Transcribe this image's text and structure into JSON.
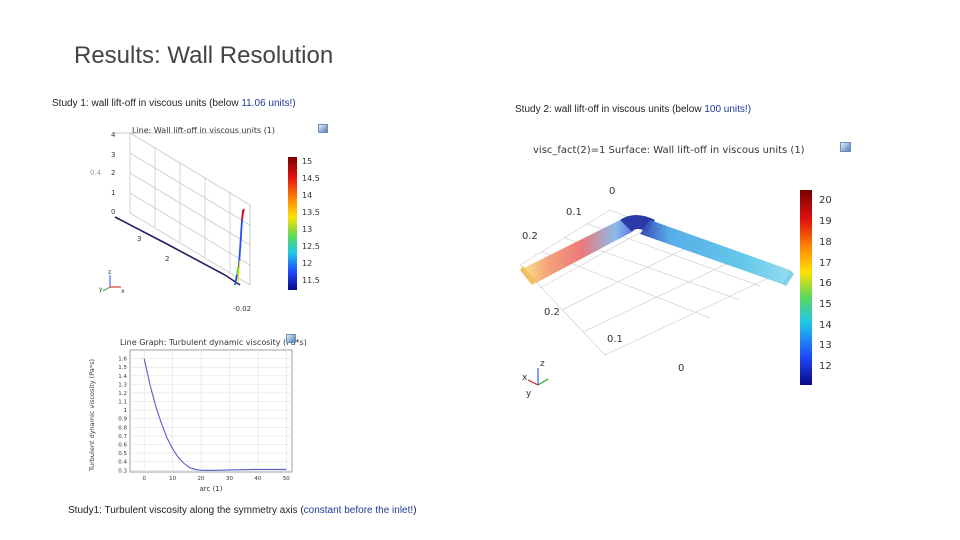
{
  "slide": {
    "title": "Results: Wall Resolution"
  },
  "study1_3d": {
    "caption_pre": "Study 1: wall lift-off in viscous units (below ",
    "caption_hl": "11.06 units!)",
    "plot_header": "Line: Wall lift-off in viscous units (1)",
    "axis_ticks": [
      "4",
      "3",
      "2",
      "1",
      "0"
    ],
    "side_label": "0.4",
    "tick_a": "3",
    "tick_b": "2",
    "tick_corner": "-0.02",
    "triad": {
      "z": "z",
      "y": "y",
      "x": "x"
    },
    "colorbar": {
      "ticks": [
        "15",
        "14.5",
        "14",
        "13.5",
        "13",
        "12.5",
        "12",
        "11.5"
      ],
      "stops": [
        "#7a0000",
        "#e01010",
        "#ff8c00",
        "#ffe000",
        "#59d95f",
        "#1fc7e8",
        "#1f4bff",
        "#0a0a88"
      ]
    }
  },
  "study1_line": {
    "header": "Line Graph: Turbulent dynamic viscosity (Pa*s)",
    "ylabel": "Turbulent dynamic viscosity (Pa*s)",
    "xlabel": "arc (1)",
    "caption_pre": "Study1: Turbulent viscosity along the symmetry axis (",
    "caption_hl": "constant before the inlet!",
    "caption_post": ")"
  },
  "study2_3d": {
    "caption_pre": "Study 2: wall lift-off in viscous units (below ",
    "caption_hl": "100 units!)",
    "caption_post": "",
    "plot_header": "visc_fact(2)=1   Surface: Wall lift-off in viscous units (1)",
    "axis_labels": {
      "top0": "0",
      "a01": "0.1",
      "a02": "0.2",
      "b02": "0.2",
      "b01": "0.1",
      "b0": "0"
    },
    "triad": {
      "z": "z",
      "y": "y",
      "x": "x"
    },
    "colorbar": {
      "ticks": [
        "20",
        "19",
        "18",
        "17",
        "16",
        "15",
        "14",
        "13",
        "12"
      ],
      "stops": [
        "#7a0000",
        "#e01010",
        "#ff8c00",
        "#ffe000",
        "#59d95f",
        "#1fc7e8",
        "#1f4bff",
        "#0a0a88"
      ]
    }
  },
  "chart_data": {
    "type": "line",
    "title": "Line Graph: Turbulent dynamic viscosity (Pa*s)",
    "xlabel": "arc (1)",
    "ylabel": "Turbulent dynamic viscosity (Pa*s)",
    "xlim": [
      -5,
      52
    ],
    "ylim": [
      0.28,
      1.7
    ],
    "x_ticks": [
      0,
      10,
      20,
      30,
      40,
      50
    ],
    "y_ticks": [
      1.6,
      1.5,
      1.4,
      1.3,
      1.2,
      1.1,
      1,
      0.9,
      0.8,
      0.7,
      0.6,
      0.5,
      0.4,
      0.3
    ],
    "grid": true,
    "series": [
      {
        "color": "#5a5fc8",
        "x": [
          0,
          2,
          4,
          6,
          8,
          10,
          12,
          14,
          16,
          18,
          20,
          25,
          30,
          40,
          50
        ],
        "y": [
          1.6,
          1.3,
          1.05,
          0.85,
          0.68,
          0.55,
          0.45,
          0.38,
          0.33,
          0.31,
          0.3,
          0.3,
          0.305,
          0.31,
          0.31
        ]
      }
    ]
  }
}
